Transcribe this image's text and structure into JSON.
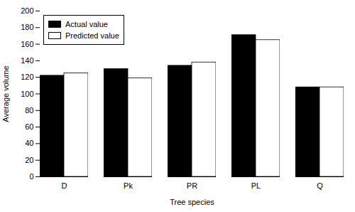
{
  "chart_data": {
    "type": "bar",
    "xlabel": "Tree species",
    "ylabel": "Average volume",
    "categories": [
      "D",
      "Pk",
      "PR",
      "PL",
      "Q"
    ],
    "series": [
      {
        "name": "Actual value",
        "color": "#000000",
        "values": [
          122,
          130,
          134,
          171,
          108
        ]
      },
      {
        "name": "Predicted value",
        "color": "#ffffff",
        "values": [
          125,
          119,
          138,
          165,
          108
        ]
      }
    ],
    "ylim": [
      0,
      200
    ],
    "yticks": [
      0,
      20,
      40,
      60,
      80,
      100,
      120,
      140,
      160,
      180,
      200
    ],
    "grid": false,
    "legend": "upper left"
  }
}
